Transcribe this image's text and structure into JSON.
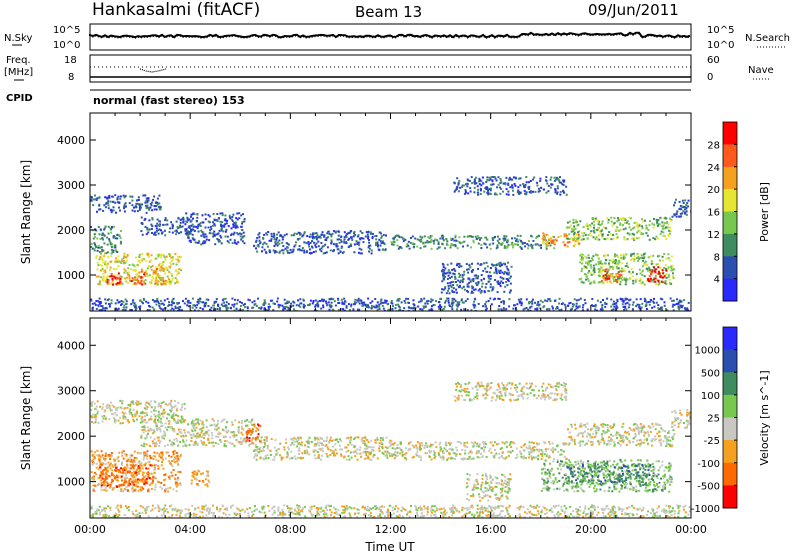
{
  "header": {
    "title": "Hankasalmi (fitACF)",
    "beam": "Beam 13",
    "date": "09/Jun/2011"
  },
  "status_panels": {
    "nsky_label": "N.Sky",
    "nsky_ticks": [
      "10^5",
      "10^0"
    ],
    "nsearch_label": "N.Search",
    "nsearch_ticks": [
      "10^5",
      "10^0"
    ],
    "freq_label": "Freq.",
    "freq_unit": "[MHz]",
    "freq_ticks": [
      "18",
      "8"
    ],
    "nave_label": "Nave",
    "nave_ticks": [
      "60",
      "0"
    ],
    "cpid_label": "CPID",
    "cpid_text": "normal (fast stereo) 153"
  },
  "chart_data": [
    {
      "type": "heatmap",
      "name": "power-panel",
      "ylabel": "Slant Range [km]",
      "yticks": [
        1000,
        2000,
        3000,
        4000
      ],
      "ylim": [
        200,
        4600
      ],
      "xlim": [
        0,
        24
      ],
      "colorbar_label": "Power [dB]",
      "colorbar_ticks": [
        "28",
        "24",
        "20",
        "16",
        "12",
        "8",
        "4"
      ],
      "colors": [
        "#2828ff",
        "#2a4fb0",
        "#3f8c5e",
        "#78c850",
        "#e6e632",
        "#f5a01e",
        "#ff5a1e",
        "#ff0000"
      ],
      "regions": [
        {
          "t": [
            0.0,
            2.8
          ],
          "r": [
            2400,
            2800
          ],
          "level": 1
        },
        {
          "t": [
            2.0,
            4.0
          ],
          "r": [
            1900,
            2300
          ],
          "level": 1
        },
        {
          "t": [
            3.8,
            6.2
          ],
          "r": [
            1700,
            2400
          ],
          "level": 1
        },
        {
          "t": [
            0.0,
            1.2
          ],
          "r": [
            1500,
            2100
          ],
          "level": 2
        },
        {
          "t": [
            0.2,
            3.6
          ],
          "r": [
            800,
            1500
          ],
          "level": 4
        },
        {
          "t": [
            0.6,
            1.2
          ],
          "r": [
            800,
            1100
          ],
          "level": 7
        },
        {
          "t": [
            1.6,
            2.2
          ],
          "r": [
            800,
            1100
          ],
          "level": 6
        },
        {
          "t": [
            2.5,
            3.0
          ],
          "r": [
            800,
            1200
          ],
          "level": 5
        },
        {
          "t": [
            6.5,
            11.8
          ],
          "r": [
            1500,
            2000
          ],
          "level": 1
        },
        {
          "t": [
            12.0,
            18.5
          ],
          "r": [
            1600,
            1900
          ],
          "level": 2
        },
        {
          "t": [
            14.0,
            16.8
          ],
          "r": [
            600,
            1300
          ],
          "level": 1
        },
        {
          "t": [
            18.0,
            19.5
          ],
          "r": [
            1650,
            1950
          ],
          "level": 5
        },
        {
          "t": [
            19.0,
            23.2
          ],
          "r": [
            1800,
            2300
          ],
          "level": 3
        },
        {
          "t": [
            19.5,
            23.3
          ],
          "r": [
            800,
            1500
          ],
          "level": 3
        },
        {
          "t": [
            20.4,
            21.2
          ],
          "r": [
            850,
            1150
          ],
          "level": 6
        },
        {
          "t": [
            22.2,
            23.0
          ],
          "r": [
            850,
            1200
          ],
          "level": 7
        },
        {
          "t": [
            23.2,
            24.0
          ],
          "r": [
            2300,
            2700
          ],
          "level": 1
        },
        {
          "t": [
            0.0,
            24.0
          ],
          "r": [
            200,
            500
          ],
          "level": 1
        },
        {
          "t": [
            14.5,
            19.0
          ],
          "r": [
            2800,
            3200
          ],
          "level": 1
        }
      ]
    },
    {
      "type": "heatmap",
      "name": "velocity-panel",
      "ylabel": "Slant Range [km]",
      "xlabel": "Time UT",
      "yticks": [
        1000,
        2000,
        3000,
        4000
      ],
      "ylim": [
        200,
        4600
      ],
      "xlim": [
        0,
        24
      ],
      "xticks": [
        "00:00",
        "04:00",
        "08:00",
        "12:00",
        "16:00",
        "20:00",
        "00:00"
      ],
      "colorbar_label": "Velocity [m s^-1]",
      "colorbar_ticks": [
        "1000",
        "500",
        "100",
        "25",
        "-25",
        "-100",
        "-500",
        "-1000"
      ],
      "colors": [
        "#2828ff",
        "#2a4fb0",
        "#3f8c5e",
        "#78c850",
        "#c8c8c0",
        "#f5a01e",
        "#ff6a00",
        "#ff0000"
      ],
      "regions": [
        {
          "t": [
            0.0,
            3.8
          ],
          "r": [
            2300,
            2800
          ],
          "level": 4
        },
        {
          "t": [
            2.0,
            6.5
          ],
          "r": [
            1800,
            2400
          ],
          "level": 4
        },
        {
          "t": [
            6.5,
            12.0
          ],
          "r": [
            1500,
            2000
          ],
          "level": 4
        },
        {
          "t": [
            12.0,
            19.0
          ],
          "r": [
            1500,
            1900
          ],
          "level": 4
        },
        {
          "t": [
            19.0,
            23.3
          ],
          "r": [
            1800,
            2300
          ],
          "level": 4
        },
        {
          "t": [
            23.2,
            24.0
          ],
          "r": [
            2200,
            2600
          ],
          "level": 4
        },
        {
          "t": [
            0.0,
            3.6
          ],
          "r": [
            800,
            1700
          ],
          "level": 5
        },
        {
          "t": [
            0.3,
            2.5
          ],
          "r": [
            900,
            1400
          ],
          "level": 6
        },
        {
          "t": [
            4.0,
            4.8
          ],
          "r": [
            900,
            1300
          ],
          "level": 5
        },
        {
          "t": [
            6.2,
            6.8
          ],
          "r": [
            1900,
            2300
          ],
          "level": 6
        },
        {
          "t": [
            15.0,
            16.8
          ],
          "r": [
            600,
            1200
          ],
          "level": 4
        },
        {
          "t": [
            18.0,
            23.2
          ],
          "r": [
            800,
            1500
          ],
          "level": 3
        },
        {
          "t": [
            19.0,
            22.5
          ],
          "r": [
            1000,
            1400
          ],
          "level": 2
        },
        {
          "t": [
            0.0,
            24.0
          ],
          "r": [
            200,
            500
          ],
          "level": 4
        },
        {
          "t": [
            14.5,
            19.0
          ],
          "r": [
            2800,
            3200
          ],
          "level": 4
        }
      ]
    }
  ]
}
